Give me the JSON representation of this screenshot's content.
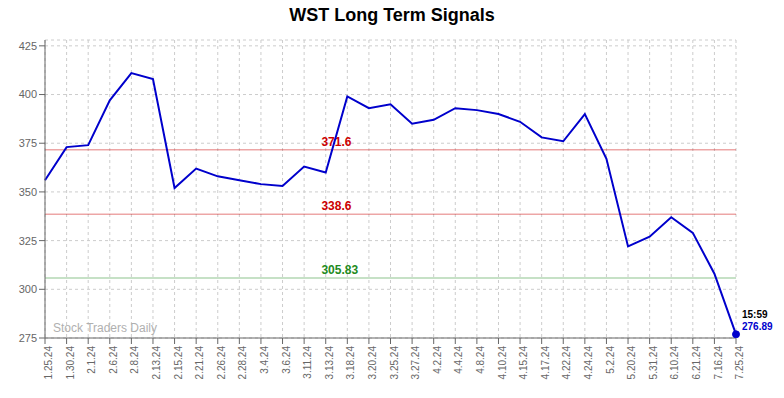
{
  "chart_data": {
    "type": "line",
    "title": "WST Long Term Signals",
    "categories": [
      "1.25.24",
      "1.30.24",
      "2.1.24",
      "2.6.24",
      "2.8.24",
      "2.13.24",
      "2.15.24",
      "2.21.24",
      "2.26.24",
      "2.28.24",
      "3.4.24",
      "3.6.24",
      "3.11.24",
      "3.13.24",
      "3.18.24",
      "3.20.24",
      "3.25.24",
      "3.27.24",
      "4.2.24",
      "4.4.24",
      "4.8.24",
      "4.10.24",
      "4.15.24",
      "4.17.24",
      "4.22.24",
      "4.24.24",
      "5.2.24",
      "5.20.24",
      "5.31.24",
      "6.10.24",
      "6.21.24",
      "7.16.24",
      "7.25.24"
    ],
    "values": [
      356,
      373,
      374,
      397,
      411,
      408,
      352,
      362,
      358,
      356,
      354,
      353,
      363,
      360,
      399,
      393,
      395,
      385,
      387,
      393,
      392,
      390,
      386,
      378,
      376,
      390,
      367,
      322,
      327,
      337,
      329,
      308,
      276.89
    ],
    "color": "#0000cc",
    "ylim": [
      275,
      428
    ],
    "yticks": [
      275,
      300,
      325,
      350,
      375,
      400,
      425
    ],
    "grid": true,
    "reference_lines": [
      {
        "value": 371.6,
        "color": "#cc0000"
      },
      {
        "value": 338.6,
        "color": "#cc0000"
      },
      {
        "value": 305.83,
        "color": "#228B22"
      }
    ],
    "annotations": [
      {
        "text": "15:59",
        "x": "7.25.24",
        "color": "#000000"
      },
      {
        "text": "276.89",
        "x": "7.25.24",
        "color": "#0000cc"
      }
    ],
    "watermark": {
      "text": "Stock Traders Daily",
      "color": "#b0b0b0"
    }
  }
}
